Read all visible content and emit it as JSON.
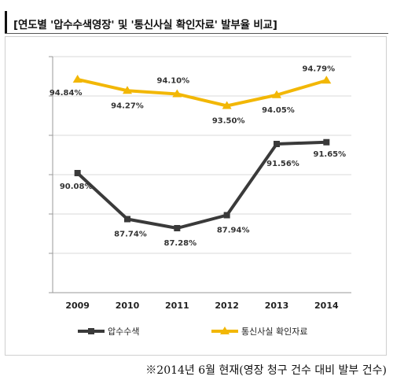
{
  "header": {
    "title": "[연도별 '압수수색영장' 및 '통신사실 확인자료' 발부율 비교]"
  },
  "footnote": "※2014년 6월 현재(영장 청구 건수 대비 발부 건수)",
  "colors": {
    "series_dark": "#3a3a3a",
    "series_gold": "#f2b705",
    "grid": "#d9d9d9"
  },
  "chart_data": {
    "type": "line",
    "title": "",
    "xlabel": "",
    "ylabel": "",
    "categories": [
      "2009",
      "2010",
      "2011",
      "2012",
      "2013",
      "2014"
    ],
    "ylim": [
      84,
      96
    ],
    "grid": true,
    "legend_position": "bottom",
    "series": [
      {
        "name": "압수수색",
        "color": "#3a3a3a",
        "values": [
          90.08,
          87.74,
          87.28,
          87.94,
          91.56,
          91.65
        ],
        "labels": [
          "90.08%",
          "87.74%",
          "87.28%",
          "87.94%",
          "91.56%",
          "91.65%"
        ]
      },
      {
        "name": "통신사실 확인자료",
        "color": "#f2b705",
        "values": [
          94.84,
          94.27,
          94.1,
          93.5,
          94.05,
          94.79
        ],
        "labels": [
          "94.84%",
          "94.27%",
          "94.10%",
          "93.50%",
          "94.05%",
          "94.79%"
        ]
      }
    ]
  }
}
